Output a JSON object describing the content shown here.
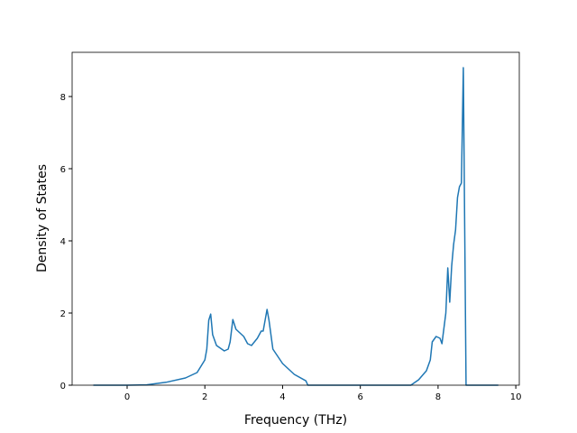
{
  "chart_data": {
    "type": "line",
    "xlabel": "Frequency (THz)",
    "ylabel": "Density of States",
    "x": [
      -0.87,
      0,
      0.5,
      1.0,
      1.5,
      1.8,
      2.0,
      2.05,
      2.1,
      2.15,
      2.2,
      2.3,
      2.5,
      2.6,
      2.65,
      2.72,
      2.8,
      3.0,
      3.1,
      3.2,
      3.35,
      3.45,
      3.5,
      3.6,
      3.65,
      3.75,
      4.0,
      4.3,
      4.6,
      4.65,
      5.0,
      7.3,
      7.5,
      7.7,
      7.8,
      7.85,
      7.95,
      8.05,
      8.1,
      8.2,
      8.25,
      8.3,
      8.35,
      8.4,
      8.45,
      8.5,
      8.55,
      8.6,
      8.65,
      8.72,
      9.55
    ],
    "series": [
      {
        "color": "#1f77b4",
        "values": [
          0,
          0,
          0.01,
          0.08,
          0.2,
          0.35,
          0.7,
          1.0,
          1.8,
          1.97,
          1.4,
          1.1,
          0.95,
          1.0,
          1.2,
          1.82,
          1.55,
          1.35,
          1.15,
          1.1,
          1.3,
          1.5,
          1.5,
          2.1,
          1.8,
          1.0,
          0.6,
          0.3,
          0.12,
          0,
          0,
          0,
          0.15,
          0.4,
          0.7,
          1.2,
          1.35,
          1.3,
          1.15,
          2.0,
          3.25,
          2.3,
          3.3,
          3.9,
          4.3,
          5.2,
          5.5,
          5.6,
          8.8,
          0,
          0
        ]
      }
    ],
    "xlim": [
      -1.415,
      10.09
    ],
    "ylim": [
      0,
      9.225
    ],
    "xticks": [
      0,
      2,
      4,
      6,
      8,
      10
    ],
    "yticks": [
      0,
      2,
      4,
      6,
      8
    ]
  }
}
